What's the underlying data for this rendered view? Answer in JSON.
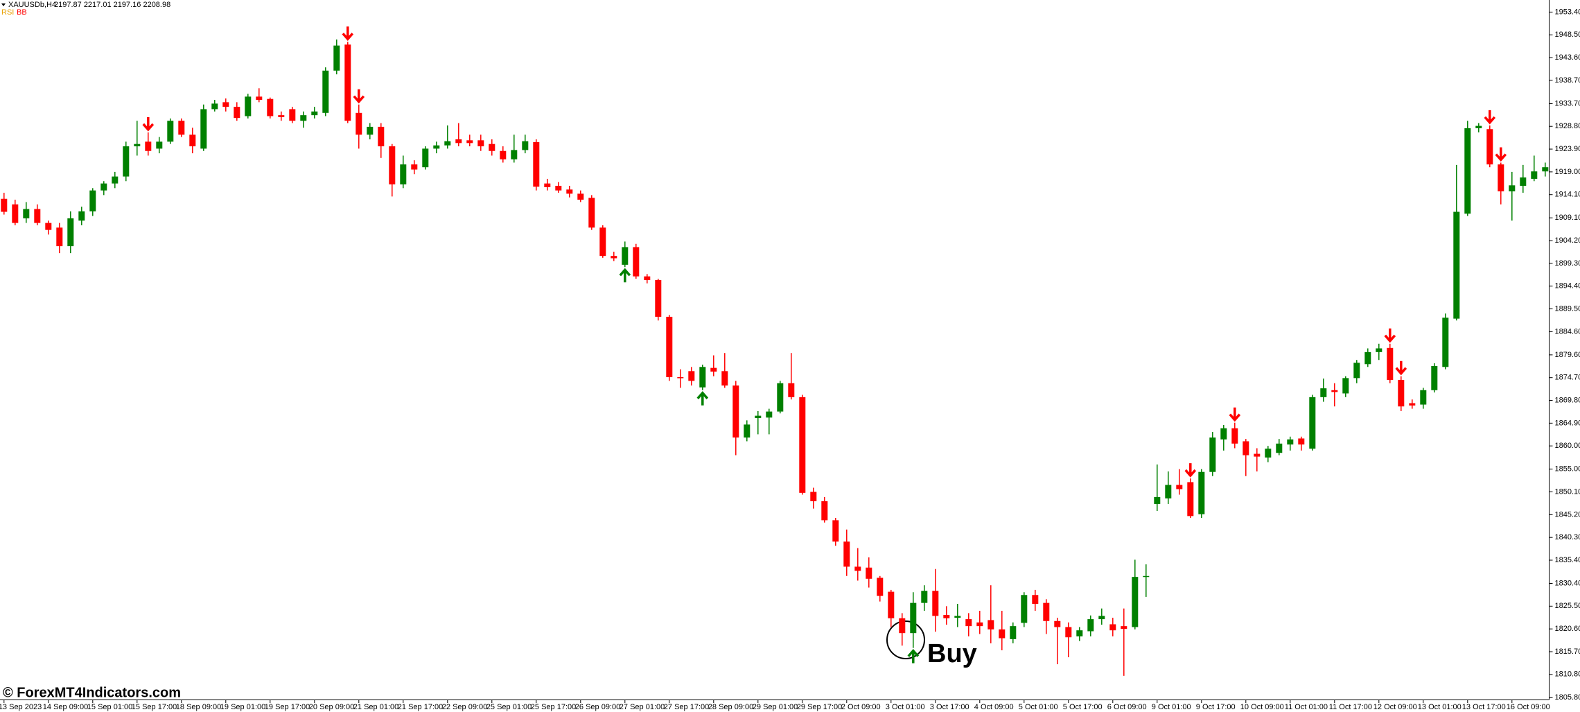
{
  "chart_data": {
    "type": "candlestick",
    "header": {
      "symbol": "XAUUSDb,H4",
      "prices": "2197.87 2217.01 2197.16 2208.98",
      "indicator_1": "RSI",
      "indicator_2": "BB"
    },
    "annotation": "Buy",
    "watermark": "© ForexMT4Indicators.com",
    "up_color": "#008000",
    "down_color": "#ff0000",
    "grid": false,
    "ylim": [
      1805.4,
      1956.0
    ],
    "yticks": [
      {
        "value": 1953.4,
        "label": "1953.40"
      },
      {
        "value": 1948.5,
        "label": "1948.50"
      },
      {
        "value": 1943.6,
        "label": "1943.60"
      },
      {
        "value": 1938.7,
        "label": "1938.70"
      },
      {
        "value": 1933.7,
        "label": "1933.70"
      },
      {
        "value": 1928.8,
        "label": "1928.80"
      },
      {
        "value": 1923.9,
        "label": "1923.90"
      },
      {
        "value": 1919.0,
        "label": "1919.00"
      },
      {
        "value": 1914.1,
        "label": "1914.10"
      },
      {
        "value": 1909.1,
        "label": "1909.10"
      },
      {
        "value": 1904.2,
        "label": "1904.20"
      },
      {
        "value": 1899.3,
        "label": "1899.30"
      },
      {
        "value": 1894.4,
        "label": "1894.40"
      },
      {
        "value": 1889.5,
        "label": "1889.50"
      },
      {
        "value": 1884.6,
        "label": "1884.60"
      },
      {
        "value": 1879.6,
        "label": "1879.60"
      },
      {
        "value": 1874.7,
        "label": "1874.70"
      },
      {
        "value": 1869.8,
        "label": "1869.80"
      },
      {
        "value": 1864.9,
        "label": "1864.90"
      },
      {
        "value": 1860.0,
        "label": "1860.00"
      },
      {
        "value": 1855.0,
        "label": "1855.00"
      },
      {
        "value": 1850.1,
        "label": "1850.10"
      },
      {
        "value": 1845.2,
        "label": "1845.20"
      },
      {
        "value": 1840.3,
        "label": "1840.30"
      },
      {
        "value": 1835.4,
        "label": "1835.40"
      },
      {
        "value": 1830.4,
        "label": "1830.40"
      },
      {
        "value": 1825.5,
        "label": "1825.50"
      },
      {
        "value": 1820.6,
        "label": "1820.60"
      },
      {
        "value": 1815.7,
        "label": "1815.70"
      },
      {
        "value": 1810.8,
        "label": "1810.80"
      },
      {
        "value": 1805.8,
        "label": "1805.80"
      }
    ],
    "categories": [
      "13 Sep 2023",
      null,
      null,
      null,
      "14 Sep 09:00",
      null,
      null,
      null,
      "15 Sep 01:00",
      null,
      null,
      null,
      "15 Sep 17:00",
      null,
      null,
      null,
      "18 Sep 09:00",
      null,
      null,
      null,
      "19 Sep 01:00",
      null,
      null,
      null,
      "19 Sep 17:00",
      null,
      null,
      null,
      "20 Sep 09:00",
      null,
      null,
      null,
      "21 Sep 01:00",
      null,
      null,
      null,
      "21 Sep 17:00",
      null,
      null,
      null,
      "22 Sep 09:00",
      null,
      null,
      null,
      "25 Sep 01:00",
      null,
      null,
      null,
      "25 Sep 17:00",
      null,
      null,
      null,
      "26 Sep 09:00",
      null,
      null,
      null,
      "27 Sep 01:00",
      null,
      null,
      null,
      "27 Sep 17:00",
      null,
      null,
      null,
      "28 Sep 09:00",
      null,
      null,
      null,
      "29 Sep 01:00",
      null,
      null,
      null,
      "29 Sep 17:00",
      null,
      null,
      null,
      "2 Oct 09:00",
      null,
      null,
      null,
      "3 Oct 01:00",
      null,
      null,
      null,
      "3 Oct 17:00",
      null,
      null,
      null,
      "4 Oct 09:00",
      null,
      null,
      null,
      "5 Oct 01:00",
      null,
      null,
      null,
      "5 Oct 17:00",
      null,
      null,
      null,
      "6 Oct 09:00",
      null,
      null,
      null,
      "9 Oct 01:00",
      null,
      null,
      null,
      "9 Oct 17:00",
      null,
      null,
      null,
      "10 Oct 09:00",
      null,
      null,
      null,
      "11 Oct 01:00",
      null,
      null,
      null,
      "11 Oct 17:00",
      null,
      null,
      null,
      "12 Oct 09:00",
      null,
      null,
      null,
      "13 Oct 01:00",
      null,
      null,
      null,
      "13 Oct 17:00",
      null,
      null,
      null,
      "16 Oct 09:00",
      null,
      null,
      null
    ],
    "ohlc": [
      [
        1913.2,
        1914.5,
        1909.8,
        1910.4
      ],
      [
        1912.0,
        1913.0,
        1907.5,
        1908.0
      ],
      [
        1909.0,
        1912.5,
        1908.0,
        1911.0
      ],
      [
        1911.0,
        1912.0,
        1907.5,
        1908.0
      ],
      [
        1908.0,
        1908.5,
        1905.5,
        1906.5
      ],
      [
        1907.0,
        1908.0,
        1901.5,
        1903.0
      ],
      [
        1903.0,
        1910.5,
        1901.5,
        1909.0
      ],
      [
        1908.5,
        1911.5,
        1907.5,
        1910.5
      ],
      [
        1910.5,
        1915.5,
        1909.5,
        1915.0
      ],
      [
        1915.0,
        1917.0,
        1914.0,
        1916.5
      ],
      [
        1916.5,
        1919.0,
        1915.5,
        1918.0
      ],
      [
        1918.0,
        1925.5,
        1917.0,
        1924.5
      ],
      [
        1924.5,
        1930.0,
        1922.5,
        1925.0
      ],
      [
        1925.5,
        1927.5,
        1922.5,
        1923.5
      ],
      [
        1924.0,
        1926.5,
        1923.0,
        1925.5
      ],
      [
        1925.5,
        1930.5,
        1925.0,
        1930.0
      ],
      [
        1930.0,
        1930.5,
        1926.5,
        1927.0
      ],
      [
        1927.0,
        1928.5,
        1923.0,
        1924.5
      ],
      [
        1924.0,
        1933.5,
        1923.5,
        1932.5
      ],
      [
        1932.5,
        1934.5,
        1932.0,
        1933.7
      ],
      [
        1934.0,
        1934.8,
        1932.0,
        1933.0
      ],
      [
        1933.0,
        1934.0,
        1930.0,
        1930.6
      ],
      [
        1931.0,
        1935.8,
        1930.5,
        1935.2
      ],
      [
        1935.2,
        1937.0,
        1934.0,
        1934.5
      ],
      [
        1934.7,
        1935.0,
        1930.5,
        1931.0
      ],
      [
        1931.2,
        1932.0,
        1930.0,
        1930.8
      ],
      [
        1932.5,
        1933.0,
        1929.5,
        1930.0
      ],
      [
        1930.0,
        1932.0,
        1928.5,
        1931.2
      ],
      [
        1931.2,
        1933.0,
        1930.5,
        1932.0
      ],
      [
        1931.7,
        1941.5,
        1931.0,
        1940.8
      ],
      [
        1940.8,
        1947.5,
        1940.0,
        1946.2
      ],
      [
        1946.4,
        1947.0,
        1929.5,
        1930.0
      ],
      [
        1931.7,
        1933.5,
        1924.0,
        1927.0
      ],
      [
        1927.0,
        1929.5,
        1926.0,
        1928.7
      ],
      [
        1928.7,
        1929.5,
        1922.0,
        1924.5
      ],
      [
        1924.5,
        1925.0,
        1913.7,
        1916.3
      ],
      [
        1916.3,
        1922.5,
        1915.5,
        1920.6
      ],
      [
        1920.6,
        1921.5,
        1918.5,
        1919.5
      ],
      [
        1920.0,
        1924.5,
        1919.5,
        1924.0
      ],
      [
        1924.0,
        1925.5,
        1923.0,
        1924.7
      ],
      [
        1924.7,
        1929.0,
        1924.0,
        1925.6
      ],
      [
        1926.0,
        1929.5,
        1924.5,
        1925.2
      ],
      [
        1925.8,
        1927.0,
        1924.5,
        1925.2
      ],
      [
        1925.8,
        1927.0,
        1923.5,
        1924.5
      ],
      [
        1925.0,
        1926.0,
        1922.5,
        1923.5
      ],
      [
        1923.5,
        1924.5,
        1921.0,
        1921.7
      ],
      [
        1921.7,
        1927.0,
        1921.0,
        1923.7
      ],
      [
        1923.7,
        1927.0,
        1923.0,
        1925.6
      ],
      [
        1925.4,
        1926.0,
        1915.0,
        1915.8
      ],
      [
        1916.5,
        1917.5,
        1915.0,
        1915.7
      ],
      [
        1916.0,
        1916.8,
        1914.5,
        1915.0
      ],
      [
        1915.2,
        1916.0,
        1913.5,
        1914.3
      ],
      [
        1914.3,
        1915.0,
        1912.5,
        1913.0
      ],
      [
        1913.4,
        1914.0,
        1906.5,
        1907.0
      ],
      [
        1907.0,
        1907.5,
        1900.5,
        1900.9
      ],
      [
        1900.9,
        1901.8,
        1899.8,
        1900.4
      ],
      [
        1899.0,
        1904.0,
        1898.5,
        1902.8
      ],
      [
        1902.8,
        1903.5,
        1896.0,
        1896.5
      ],
      [
        1896.5,
        1897.0,
        1895.0,
        1895.7
      ],
      [
        1895.7,
        1896.0,
        1887.0,
        1887.8
      ],
      [
        1887.8,
        1888.2,
        1874.0,
        1874.8
      ],
      [
        1874.8,
        1876.5,
        1872.5,
        1874.6
      ],
      [
        1876.1,
        1877.0,
        1873.0,
        1874.0
      ],
      [
        1872.6,
        1877.5,
        1872.0,
        1877.0
      ],
      [
        1876.8,
        1879.5,
        1875.0,
        1876.0
      ],
      [
        1876.1,
        1880.0,
        1872.5,
        1873.0
      ],
      [
        1873.0,
        1874.0,
        1858.0,
        1861.8
      ],
      [
        1861.8,
        1865.5,
        1861.0,
        1864.6
      ],
      [
        1866.0,
        1867.5,
        1862.5,
        1866.5
      ],
      [
        1866.1,
        1868.0,
        1862.5,
        1867.4
      ],
      [
        1867.4,
        1874.0,
        1867.0,
        1873.5
      ],
      [
        1873.5,
        1880.0,
        1870.0,
        1870.5
      ],
      [
        1870.5,
        1871.0,
        1849.5,
        1849.9
      ],
      [
        1850.1,
        1851.0,
        1846.5,
        1848.1
      ],
      [
        1848.1,
        1849.0,
        1843.5,
        1844.0
      ],
      [
        1844.0,
        1844.5,
        1838.5,
        1839.4
      ],
      [
        1839.4,
        1842.0,
        1832.0,
        1834.0
      ],
      [
        1834.0,
        1838.0,
        1831.0,
        1833.1
      ],
      [
        1833.8,
        1836.0,
        1829.5,
        1831.4
      ],
      [
        1831.6,
        1832.0,
        1826.5,
        1827.7
      ],
      [
        1828.6,
        1829.0,
        1821.0,
        1822.9
      ],
      [
        1822.9,
        1824.0,
        1817.0,
        1819.7
      ],
      [
        1819.7,
        1828.5,
        1816.5,
        1826.2
      ],
      [
        1826.2,
        1830.0,
        1824.5,
        1828.8
      ],
      [
        1828.8,
        1833.5,
        1820.0,
        1823.4
      ],
      [
        1823.6,
        1825.5,
        1821.5,
        1822.9
      ],
      [
        1823.0,
        1826.0,
        1821.0,
        1823.4
      ],
      [
        1822.7,
        1824.0,
        1819.0,
        1821.2
      ],
      [
        1822.0,
        1824.5,
        1819.5,
        1821.2
      ],
      [
        1822.5,
        1830.0,
        1817.5,
        1820.5
      ],
      [
        1820.5,
        1824.5,
        1816.0,
        1818.6
      ],
      [
        1818.4,
        1822.0,
        1817.5,
        1821.2
      ],
      [
        1821.9,
        1828.5,
        1821.0,
        1827.9
      ],
      [
        1827.9,
        1829.0,
        1824.5,
        1826.0
      ],
      [
        1826.2,
        1827.0,
        1819.5,
        1822.3
      ],
      [
        1822.3,
        1823.0,
        1813.0,
        1821.0
      ],
      [
        1821.0,
        1822.0,
        1814.5,
        1818.8
      ],
      [
        1819.0,
        1821.0,
        1818.0,
        1820.3
      ],
      [
        1820.1,
        1823.5,
        1819.0,
        1822.7
      ],
      [
        1822.7,
        1825.0,
        1821.5,
        1823.4
      ],
      [
        1821.6,
        1823.0,
        1819.0,
        1820.3
      ],
      [
        1821.2,
        1825.0,
        1810.5,
        1820.6
      ],
      [
        1821.0,
        1835.5,
        1820.5,
        1831.8
      ],
      [
        1831.8,
        1834.5,
        1827.5,
        1832.0
      ],
      [
        1847.5,
        1856.0,
        1846.0,
        1849.0
      ],
      [
        1848.7,
        1854.5,
        1847.5,
        1851.6
      ],
      [
        1851.6,
        1855.0,
        1849.5,
        1850.7
      ],
      [
        1852.2,
        1853.0,
        1844.5,
        1844.9
      ],
      [
        1845.3,
        1855.0,
        1844.5,
        1854.4
      ],
      [
        1854.4,
        1863.0,
        1853.5,
        1861.8
      ],
      [
        1861.4,
        1864.5,
        1859.0,
        1863.8
      ],
      [
        1863.8,
        1865.0,
        1859.5,
        1860.5
      ],
      [
        1861.0,
        1861.5,
        1853.5,
        1858.0
      ],
      [
        1858.3,
        1859.5,
        1854.5,
        1857.7
      ],
      [
        1857.5,
        1860.0,
        1856.5,
        1859.4
      ],
      [
        1858.5,
        1861.5,
        1858.0,
        1860.5
      ],
      [
        1860.3,
        1862.0,
        1859.0,
        1861.4
      ],
      [
        1861.6,
        1862.0,
        1859.0,
        1860.3
      ],
      [
        1859.4,
        1871.0,
        1859.0,
        1870.5
      ],
      [
        1870.5,
        1874.5,
        1869.5,
        1872.4
      ],
      [
        1872.0,
        1873.5,
        1868.5,
        1871.6
      ],
      [
        1871.3,
        1875.0,
        1870.5,
        1874.6
      ],
      [
        1874.6,
        1878.5,
        1873.5,
        1877.9
      ],
      [
        1877.6,
        1881.0,
        1877.0,
        1880.2
      ],
      [
        1880.2,
        1882.0,
        1878.5,
        1881.0
      ],
      [
        1881.1,
        1882.0,
        1873.5,
        1874.2
      ],
      [
        1874.2,
        1875.0,
        1867.5,
        1868.5
      ],
      [
        1869.2,
        1870.0,
        1868.0,
        1868.7
      ],
      [
        1868.9,
        1872.5,
        1868.0,
        1872.0
      ],
      [
        1872.0,
        1877.8,
        1871.5,
        1877.2
      ],
      [
        1877.0,
        1888.5,
        1876.5,
        1887.6
      ],
      [
        1887.4,
        1920.5,
        1887.0,
        1910.4
      ],
      [
        1910.0,
        1930.0,
        1909.5,
        1928.4
      ],
      [
        1928.4,
        1929.5,
        1927.5,
        1928.9
      ],
      [
        1928.2,
        1929.0,
        1920.0,
        1920.6
      ],
      [
        1920.6,
        1921.0,
        1912.0,
        1914.8
      ],
      [
        1914.8,
        1919.0,
        1908.5,
        1916.1
      ],
      [
        1916.0,
        1920.5,
        1914.5,
        1917.8
      ],
      [
        1917.5,
        1922.5,
        1917.0,
        1919.1
      ],
      [
        1919.1,
        1921.0,
        1918.0,
        1920.0
      ]
    ],
    "sell_arrows": [
      13,
      31,
      32,
      107,
      111,
      125,
      126,
      134,
      135
    ],
    "buy_arrows": [
      56,
      63,
      82
    ]
  }
}
